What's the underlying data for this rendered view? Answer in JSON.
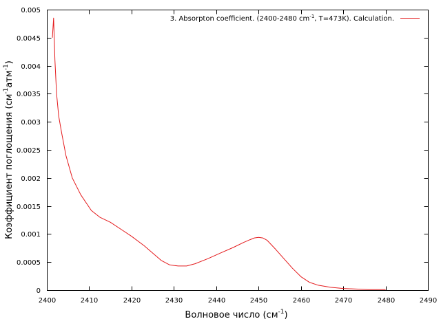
{
  "chart_data": {
    "type": "line",
    "title": "",
    "xlabel": {
      "base": "Волновое число (см",
      "sup": "-1",
      "tail": ")"
    },
    "ylabel": {
      "base": "Коэффициент поглощения (см",
      "sup1": "-1",
      "mid": "атм",
      "sup2": "-1",
      "tail": ")"
    },
    "xlim": [
      2400,
      2490
    ],
    "ylim": [
      0,
      0.005
    ],
    "xticks": [
      2400,
      2410,
      2420,
      2430,
      2440,
      2450,
      2460,
      2470,
      2480,
      2490
    ],
    "yticks": [
      "0",
      "0.0005",
      "0.001",
      "0.0015",
      "0.002",
      "0.0025",
      "0.003",
      "0.0035",
      "0.004",
      "0.0045",
      "0.005"
    ],
    "grid": false,
    "legend_position": "top-right",
    "legend": {
      "pre": "3. Absorpton coefficient. (2400-2480 cm",
      "sup": "-1",
      "post": ", T=473K). Calculation."
    },
    "series": [
      {
        "color": "#e41a1c",
        "x": [
          2401.3,
          2401.6,
          2401.9,
          2402.3,
          2402.8,
          2403.5,
          2404.5,
          2406,
          2408,
          2410.5,
          2412.5,
          2415,
          2418,
          2420,
          2423,
          2425,
          2427,
          2429,
          2431,
          2433,
          2435,
          2438,
          2441,
          2444,
          2446.5,
          2448,
          2449,
          2450,
          2451,
          2452,
          2454,
          2456,
          2458,
          2460,
          2462,
          2464,
          2467,
          2470,
          2473,
          2476,
          2480
        ],
        "y": [
          0.0045,
          0.00485,
          0.0041,
          0.0035,
          0.0031,
          0.0028,
          0.0024,
          0.002,
          0.0017,
          0.00142,
          0.0013,
          0.00121,
          0.00106,
          0.00096,
          0.00079,
          0.00066,
          0.00053,
          0.00045,
          0.00043,
          0.00043,
          0.00047,
          0.00056,
          0.00066,
          0.00076,
          0.00085,
          0.0009,
          0.00093,
          0.00094,
          0.00093,
          0.00089,
          0.00073,
          0.00056,
          0.00039,
          0.00024,
          0.00014,
          9e-05,
          5e-05,
          3e-05,
          2e-05,
          1e-05,
          1e-05
        ]
      }
    ]
  }
}
